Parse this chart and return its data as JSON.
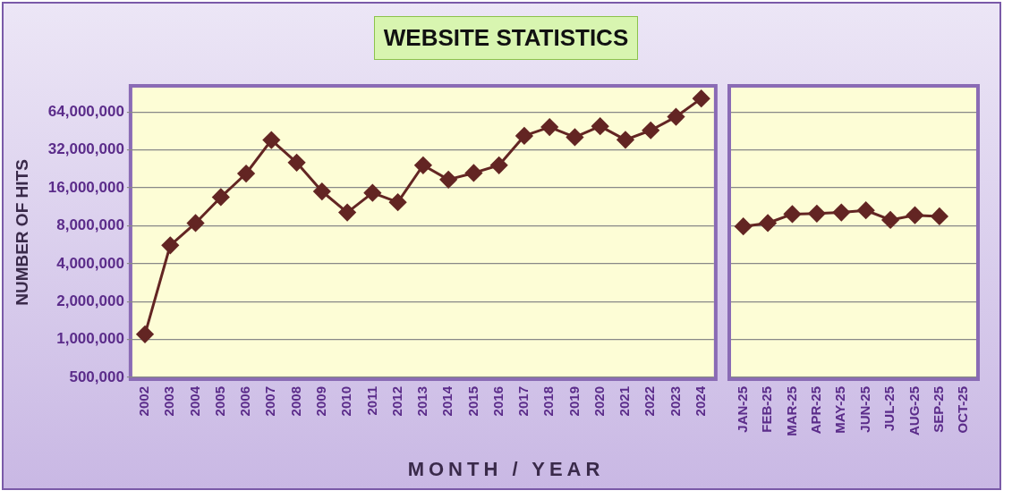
{
  "chart_data": [
    {
      "type": "line",
      "title": "WEBSITE STATISTICS",
      "xlabel": "MONTH / YEAR",
      "ylabel": "NUMBER OF HITS",
      "categories": [
        "2002",
        "2003",
        "2004",
        "2005",
        "2006",
        "2007",
        "2008",
        "2009",
        "2010",
        "2011",
        "2012",
        "2013",
        "2014",
        "2015",
        "2016",
        "2017",
        "2018",
        "2019",
        "2020",
        "2021",
        "2022",
        "2023",
        "2024"
      ],
      "color": "#632523",
      "values": [
        1100000,
        5600000,
        8400000,
        13500000,
        20800000,
        38400000,
        25400000,
        15000000,
        10200000,
        14600000,
        12300000,
        24200000,
        18600000,
        21000000,
        24200000,
        41400000,
        48600000,
        40400000,
        49400000,
        38500000,
        45800000,
        58700000,
        82000000
      ],
      "log": "y",
      "ylim": [
        500000,
        100000000
      ],
      "yticks": [
        {
          "value": 500000,
          "label": "500,000"
        },
        {
          "value": 1000000,
          "label": "1,000,000"
        },
        {
          "value": 2000000,
          "label": "2,000,000"
        },
        {
          "value": 4000000,
          "label": "4,000,000"
        },
        {
          "value": 8000000,
          "label": "8,000,000"
        },
        {
          "value": 16000000,
          "label": "16,000,000"
        },
        {
          "value": 32000000,
          "label": "32,000,000"
        },
        {
          "value": 64000000,
          "label": "64,000,000"
        }
      ],
      "grid": "y",
      "legend": false,
      "marker": "diamond",
      "line_style": "solid"
    },
    {
      "type": "line",
      "categories": [
        "JAN-25",
        "FEB-25",
        "MAR-25",
        "APR-25",
        "MAY-25",
        "JUN-25",
        "JUL-25",
        "AUG-25",
        "SEP-25",
        "OCT-25"
      ],
      "color": "#632523",
      "values": [
        7900000,
        8400000,
        9900000,
        10000000,
        10200000,
        10600000,
        8900000,
        9700000,
        9500000,
        null
      ],
      "log": "y",
      "ylim": [
        500000,
        100000000
      ],
      "yticks": [
        {
          "value": 500000,
          "label": null
        },
        {
          "value": 1000000,
          "label": null
        },
        {
          "value": 2000000,
          "label": null
        },
        {
          "value": 4000000,
          "label": null
        },
        {
          "value": 8000000,
          "label": null
        },
        {
          "value": 16000000,
          "label": null
        },
        {
          "value": 32000000,
          "label": null
        },
        {
          "value": 64000000,
          "label": null
        }
      ],
      "grid": "y",
      "legend": false,
      "marker": "diamond",
      "line_style": "solid",
      "tick_labels": "x"
    }
  ]
}
